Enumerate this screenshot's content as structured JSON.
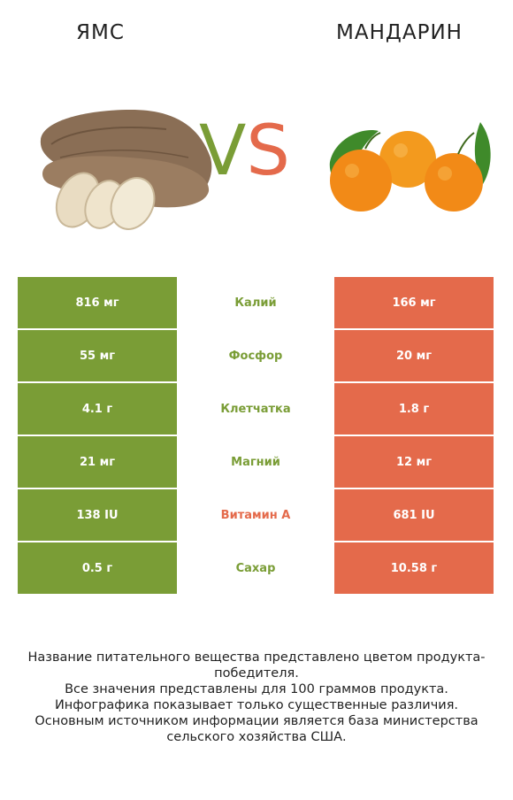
{
  "header": {
    "left_title": "ЯМС",
    "right_title": "МАНДАРИН",
    "vs_v": "V",
    "vs_s": "S"
  },
  "colors": {
    "left": "#7a9d36",
    "right": "#e46a4b"
  },
  "rows": [
    {
      "left": "816 мг",
      "name": "Калий",
      "right": "166 мг",
      "winner": "left"
    },
    {
      "left": "55 мг",
      "name": "Фосфор",
      "right": "20 мг",
      "winner": "left"
    },
    {
      "left": "4.1 г",
      "name": "Клетчатка",
      "right": "1.8 г",
      "winner": "left"
    },
    {
      "left": "21 мг",
      "name": "Магний",
      "right": "12 мг",
      "winner": "left"
    },
    {
      "left": "138 IU",
      "name": "Витамин A",
      "right": "681 IU",
      "winner": "right"
    },
    {
      "left": "0.5 г",
      "name": "Сахар",
      "right": "10.58 г",
      "winner": "left"
    }
  ],
  "footer": {
    "line1": "Название питательного вещества представлено цветом продукта-победителя.",
    "line2": "Все значения представлены для 100 граммов продукта.",
    "line3": "Инфографика показывает только существенные различия.",
    "line4": "Основным источником информации является база министерства сельского хозяйства США."
  }
}
